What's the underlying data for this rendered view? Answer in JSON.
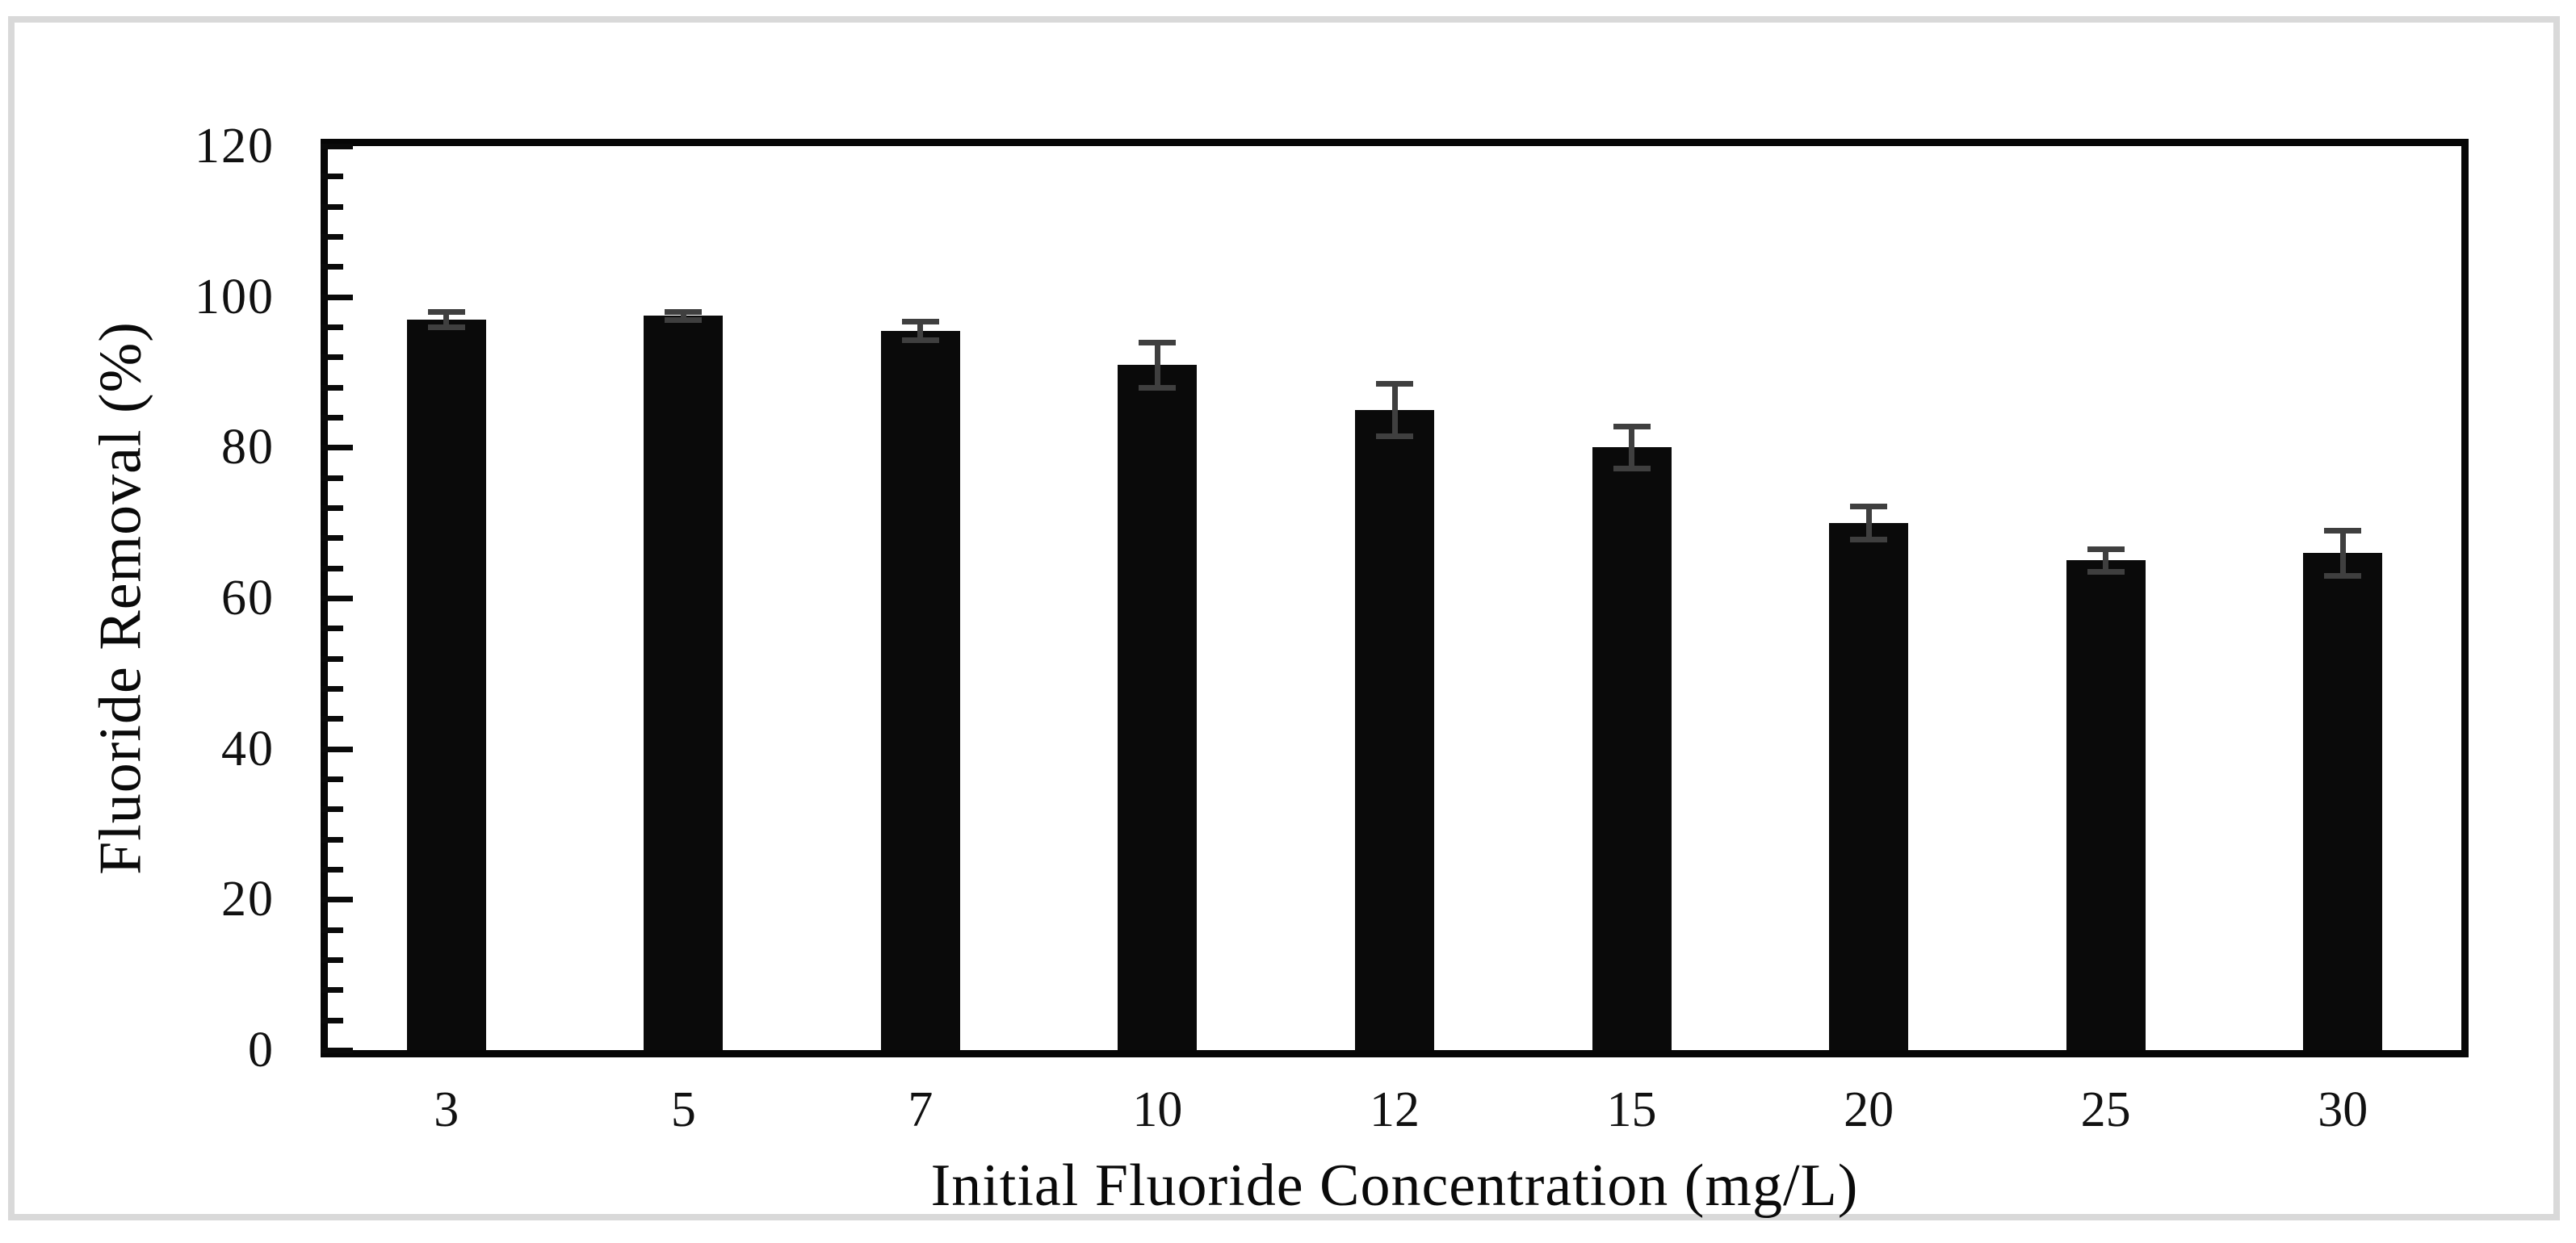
{
  "chart_data": {
    "type": "bar",
    "title": "",
    "xlabel": "Initial Fluoride Concentration (mg/L)",
    "ylabel": "Fluoride Removal (%)",
    "categories": [
      "3",
      "5",
      "7",
      "10",
      "12",
      "15",
      "20",
      "25",
      "30"
    ],
    "values": [
      97,
      97.5,
      95.5,
      91,
      85,
      80,
      70,
      65,
      66
    ],
    "error_bars": [
      1,
      0.5,
      1.2,
      3,
      3.5,
      2.8,
      2.2,
      1.5,
      3
    ],
    "ylim": [
      0,
      120
    ],
    "y_major_ticks": [
      0,
      20,
      40,
      60,
      80,
      100,
      120
    ],
    "y_minor_unit": 4,
    "grid": false,
    "legend": "none",
    "colors": {
      "bar": "#0a0a0a",
      "error_bar": "#3f3f3f",
      "axis": "#060606",
      "frame": "#d9d9d9",
      "background": "#ffffff"
    }
  }
}
